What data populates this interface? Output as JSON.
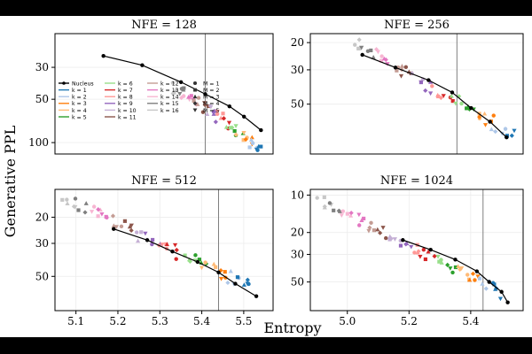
{
  "figure": {
    "ylabel": "Generative PPL",
    "xlabel": "Entropy"
  },
  "legend": {
    "items": [
      {
        "label": "Nucleus",
        "color": "#000000",
        "kind": "line-dot"
      },
      {
        "label": "k = 1",
        "color": "#1f77b4",
        "kind": "line"
      },
      {
        "label": "k = 2",
        "color": "#aec7e8",
        "kind": "line"
      },
      {
        "label": "k = 3",
        "color": "#ff7f0e",
        "kind": "line"
      },
      {
        "label": "k = 4",
        "color": "#ffbb78",
        "kind": "line"
      },
      {
        "label": "k = 5",
        "color": "#2ca02c",
        "kind": "line"
      },
      {
        "label": "k = 6",
        "color": "#98df8a",
        "kind": "line"
      },
      {
        "label": "k = 7",
        "color": "#d62728",
        "kind": "line"
      },
      {
        "label": "k = 8",
        "color": "#ff9896",
        "kind": "line"
      },
      {
        "label": "k = 9",
        "color": "#9467bd",
        "kind": "line"
      },
      {
        "label": "k = 10",
        "color": "#c5b0d5",
        "kind": "line"
      },
      {
        "label": "k = 11",
        "color": "#8c564b",
        "kind": "line"
      },
      {
        "label": "k = 12",
        "color": "#c49c94",
        "kind": "line"
      },
      {
        "label": "k = 13",
        "color": "#e377c2",
        "kind": "line"
      },
      {
        "label": "k = 14",
        "color": "#f7b6d2",
        "kind": "line"
      },
      {
        "label": "k = 15",
        "color": "#7f7f7f",
        "kind": "line"
      },
      {
        "label": "k = 16",
        "color": "#c7c7c7",
        "kind": "line"
      },
      {
        "label": "M = 1",
        "color": "#333333",
        "kind": "circle"
      },
      {
        "label": "M = 2",
        "color": "#333333",
        "kind": "square"
      },
      {
        "label": "M = 3",
        "color": "#333333",
        "kind": "triangle-up"
      },
      {
        "label": "M = 4",
        "color": "#333333",
        "kind": "diamond"
      },
      {
        "label": "M = 5",
        "color": "#333333",
        "kind": "triangle-down"
      }
    ]
  },
  "chart_data": [
    {
      "type": "scatter",
      "title": "NFE = 128",
      "y_scale": "log",
      "y_inverted": true,
      "xlim": [
        5.13,
        5.58
      ],
      "ylim": [
        120,
        17.5
      ],
      "xticks": [],
      "yticks": [
        30,
        50,
        100
      ],
      "vline_x": 5.44,
      "nucleus": {
        "x": [
          5.23,
          5.31,
          5.39,
          5.44,
          5.49,
          5.52,
          5.555
        ],
        "y": [
          25,
          29,
          38,
          46,
          56,
          66,
          82
        ]
      },
      "cloud": {
        "x_start": 5.37,
        "x_end": 5.56,
        "y_start": 40,
        "y_end": 110,
        "points": 58,
        "jitter": 0.1
      }
    },
    {
      "type": "scatter",
      "title": "NFE = 256",
      "y_scale": "log",
      "y_inverted": true,
      "xlim": [
        5.13,
        5.58
      ],
      "ylim": [
        105,
        17.5
      ],
      "xticks": [],
      "yticks": [
        20,
        30,
        50
      ],
      "vline_x": 5.44,
      "nucleus": {
        "x": [
          5.24,
          5.31,
          5.38,
          5.43,
          5.47,
          5.51,
          5.545
        ],
        "y": [
          24,
          29,
          35,
          42,
          53,
          65,
          82
        ]
      },
      "cloud": {
        "x_start": 5.22,
        "x_end": 5.56,
        "y_start": 19.5,
        "y_end": 80,
        "points": 60,
        "jitter": 0.09
      }
    },
    {
      "type": "scatter",
      "title": "NFE = 512",
      "y_scale": "log",
      "y_inverted": true,
      "xlim": [
        5.05,
        5.57
      ],
      "ylim": [
        85,
        13
      ],
      "xticks": [
        5.1,
        5.2,
        5.3,
        5.4,
        5.5
      ],
      "yticks": [
        20,
        30,
        50
      ],
      "vline_x": 5.44,
      "nucleus": {
        "x": [
          5.19,
          5.27,
          5.33,
          5.39,
          5.44,
          5.48,
          5.53
        ],
        "y": [
          24,
          28.5,
          34,
          40,
          47,
          56,
          68
        ]
      },
      "cloud": {
        "x_start": 5.07,
        "x_end": 5.52,
        "y_start": 14.5,
        "y_end": 60,
        "points": 66,
        "jitter": 0.1
      }
    },
    {
      "type": "scatter",
      "title": "NFE = 1024",
      "y_scale": "log",
      "y_inverted": true,
      "xlim": [
        4.88,
        5.57
      ],
      "ylim": [
        85,
        9
      ],
      "xticks": [
        5.0,
        5.2,
        5.4
      ],
      "yticks": [
        10,
        20,
        30,
        50
      ],
      "vline_x": 5.44,
      "nucleus": {
        "x": [
          5.18,
          5.27,
          5.35,
          5.42,
          5.46,
          5.5,
          5.52
        ],
        "y": [
          23,
          27.5,
          33,
          41,
          50,
          60,
          73
        ]
      },
      "cloud": {
        "x_start": 4.91,
        "x_end": 5.5,
        "y_start": 11,
        "y_end": 62,
        "points": 70,
        "jitter": 0.1
      }
    }
  ]
}
